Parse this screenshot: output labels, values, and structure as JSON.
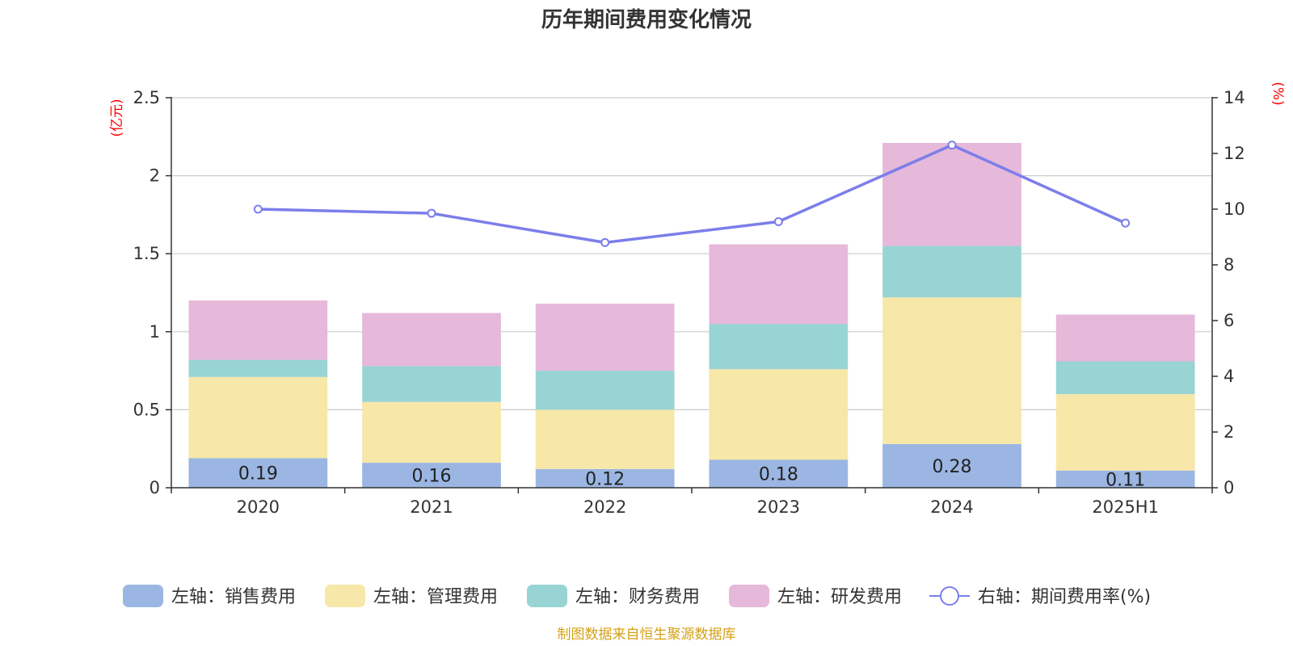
{
  "chart_data": {
    "type": "bar",
    "stacked": true,
    "title": "历年期间费用变化情况",
    "categories": [
      "2020",
      "2021",
      "2022",
      "2023",
      "2024",
      "2025H1"
    ],
    "left_axis": {
      "unit": "(亿元)",
      "ylim": [
        0,
        2.5
      ],
      "ticks": [
        "0",
        "0.5",
        "1",
        "1.5",
        "2",
        "2.5"
      ],
      "tick_values": [
        0,
        0.5,
        1,
        1.5,
        2,
        2.5
      ]
    },
    "right_axis": {
      "unit": "(%)",
      "ylim": [
        0,
        14
      ],
      "ticks": [
        "0",
        "2",
        "4",
        "6",
        "8",
        "10",
        "12",
        "14"
      ],
      "tick_values": [
        0,
        2,
        4,
        6,
        8,
        10,
        12,
        14
      ]
    },
    "grid": true,
    "legend_position": "bottom",
    "series": [
      {
        "name": "左轴：销售费用",
        "type": "bar",
        "axis": "left",
        "color": "#9bb6e2",
        "values": [
          0.19,
          0.16,
          0.12,
          0.18,
          0.28,
          0.11
        ],
        "labels": [
          "0.19",
          "0.16",
          "0.12",
          "0.18",
          "0.28",
          "0.11"
        ]
      },
      {
        "name": "左轴：管理费用",
        "type": "bar",
        "axis": "left",
        "color": "#f7e7a8",
        "values": [
          0.52,
          0.39,
          0.38,
          0.58,
          0.94,
          0.49
        ]
      },
      {
        "name": "左轴：财务费用",
        "type": "bar",
        "axis": "left",
        "color": "#98d4d4",
        "values": [
          0.11,
          0.23,
          0.25,
          0.29,
          0.33,
          0.21
        ]
      },
      {
        "name": "左轴：研发费用",
        "type": "bar",
        "axis": "left",
        "color": "#e6b8d9",
        "values": [
          0.38,
          0.34,
          0.43,
          0.51,
          0.66,
          0.3
        ]
      },
      {
        "name": "右轴：期间费用率(%)",
        "type": "line",
        "axis": "right",
        "color": "#7b7eea",
        "values": [
          10.0,
          9.85,
          8.8,
          9.55,
          12.3,
          9.5
        ]
      }
    ],
    "source_note": "制图数据来自恒生聚源数据库"
  }
}
